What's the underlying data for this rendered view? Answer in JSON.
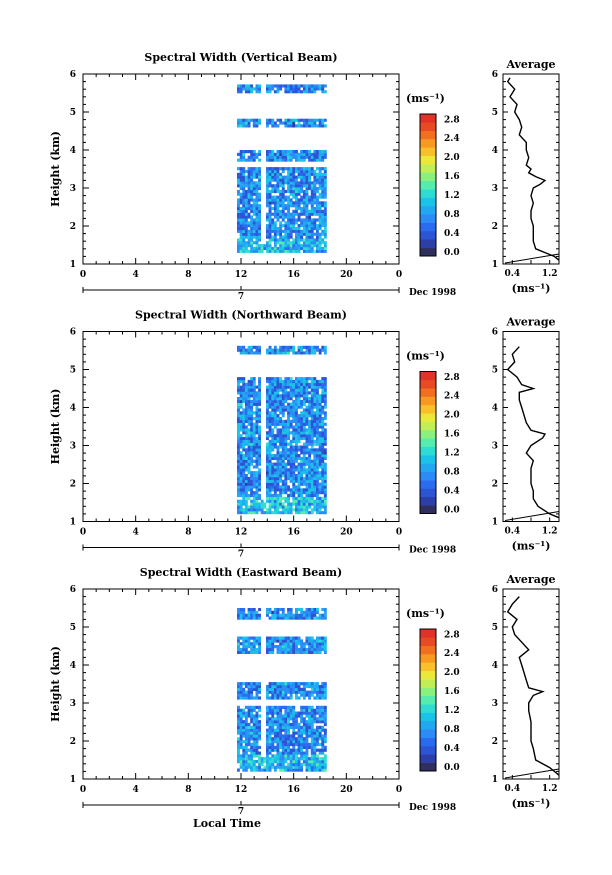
{
  "colors": {
    "background": "#ffffff",
    "axis": "#000000",
    "colorbar": [
      "#2f2f5f",
      "#2c3ea8",
      "#2c55d6",
      "#2a6cf0",
      "#2a8cf4",
      "#22a8f0",
      "#19c4e8",
      "#2fdcd2",
      "#55ecae",
      "#8af07e",
      "#c2ee55",
      "#ece83a",
      "#f8c02a",
      "#f89a22",
      "#f0701f",
      "#e84a23",
      "#e03228"
    ]
  },
  "common": {
    "x_ticks": [
      "0",
      "4",
      "8",
      "12",
      "16",
      "20",
      "0"
    ],
    "y_ticks": [
      "1",
      "2",
      "3",
      "4",
      "5",
      "6"
    ],
    "date_label": "7",
    "month_label": "Dec 1998",
    "colorbar_unit": "(ms⁻¹)",
    "colorbar_ticks": [
      "0.0",
      "0.4",
      "0.8",
      "1.2",
      "1.6",
      "2.0",
      "2.4",
      "2.8"
    ],
    "avg_title": "Average",
    "avg_x_ticks": [
      "0.4",
      "1.2"
    ],
    "avg_unit": "(ms⁻¹)",
    "x_axis_label": "Local Time",
    "ylabel": "Height (km)"
  },
  "panels": [
    {
      "title": "Spectral Width (Vertical Beam)"
    },
    {
      "title": "Spectral Width (Northward Beam)"
    },
    {
      "title": "Spectral Width (Eastward Beam)"
    }
  ],
  "chart_data": [
    {
      "type": "heatmap",
      "title": "Spectral Width (Vertical Beam)",
      "xlabel": "",
      "ylabel": "Height (km)",
      "xlim": [
        0,
        24
      ],
      "ylim": [
        1,
        6
      ],
      "colorbar_label": "(ms⁻¹)",
      "colorbar_range": [
        0.0,
        3.0
      ],
      "data_time_range": [
        11.7,
        18.3
      ],
      "data_height_ranges": [
        [
          1.3,
          3.5
        ],
        [
          3.7,
          4.0
        ],
        [
          4.6,
          4.8
        ],
        [
          5.5,
          5.7
        ]
      ],
      "typical_values": "0.4–1.4 m/s (blue to cyan)",
      "average_profile": {
        "title": "Average",
        "xlabel": "(ms⁻¹)",
        "xlim": [
          0.2,
          1.4
        ],
        "height": [
          1.1,
          1.2,
          1.3,
          1.4,
          1.6,
          1.8,
          2.0,
          2.2,
          2.4,
          2.6,
          2.8,
          3.0,
          3.1,
          3.2,
          3.3,
          3.4,
          3.5,
          3.6,
          3.8,
          4.0,
          4.2,
          4.4,
          4.6,
          4.8,
          5.0,
          5.2,
          5.4,
          5.6,
          5.8,
          5.9
        ],
        "value": [
          1.4,
          1.3,
          1.1,
          0.9,
          0.85,
          0.85,
          0.85,
          0.8,
          0.8,
          0.85,
          0.8,
          0.85,
          1.0,
          1.1,
          0.9,
          0.75,
          0.8,
          0.7,
          0.75,
          0.7,
          0.7,
          0.55,
          0.6,
          0.55,
          0.45,
          0.5,
          0.35,
          0.45,
          0.3,
          0.35
        ]
      }
    },
    {
      "type": "heatmap",
      "title": "Spectral Width (Northward Beam)",
      "xlabel": "",
      "ylabel": "Height (km)",
      "xlim": [
        0,
        24
      ],
      "ylim": [
        1,
        6
      ],
      "colorbar_label": "(ms⁻¹)",
      "colorbar_range": [
        0.0,
        3.0
      ],
      "data_time_range": [
        11.7,
        18.3
      ],
      "data_height_ranges": [
        [
          1.2,
          4.8
        ],
        [
          5.4,
          5.6
        ]
      ],
      "typical_values": "0.4–1.2 m/s (blue to cyan)",
      "average_profile": {
        "title": "Average",
        "xlabel": "(ms⁻¹)",
        "xlim": [
          0.2,
          1.4
        ],
        "height": [
          1.1,
          1.2,
          1.4,
          1.6,
          1.8,
          2.0,
          2.2,
          2.4,
          2.6,
          2.8,
          3.0,
          3.2,
          3.3,
          3.4,
          3.6,
          3.8,
          4.0,
          4.2,
          4.4,
          4.5,
          4.6,
          4.8,
          5.0,
          5.2,
          5.4,
          5.6
        ],
        "value": [
          1.4,
          1.2,
          0.95,
          0.85,
          0.85,
          0.8,
          0.8,
          0.8,
          0.85,
          0.7,
          0.8,
          1.05,
          1.1,
          0.8,
          0.7,
          0.65,
          0.6,
          0.55,
          0.55,
          0.85,
          0.6,
          0.5,
          0.3,
          0.45,
          0.4,
          0.55
        ]
      }
    },
    {
      "type": "heatmap",
      "title": "Spectral Width (Eastward Beam)",
      "xlabel": "Local Time",
      "ylabel": "Height (km)",
      "xlim": [
        0,
        24
      ],
      "ylim": [
        1,
        6
      ],
      "colorbar_label": "(ms⁻¹)",
      "colorbar_range": [
        0.0,
        3.0
      ],
      "data_time_range": [
        11.7,
        18.3
      ],
      "data_height_ranges": [
        [
          1.2,
          2.9
        ],
        [
          3.1,
          3.5
        ],
        [
          4.3,
          4.7
        ],
        [
          5.2,
          5.5
        ]
      ],
      "typical_values": "0.4–1.2 m/s (blue to cyan)",
      "average_profile": {
        "title": "Average",
        "xlabel": "(ms⁻¹)",
        "xlim": [
          0.2,
          1.4
        ],
        "height": [
          1.1,
          1.3,
          1.5,
          1.8,
          2.0,
          2.2,
          2.5,
          2.8,
          3.0,
          3.2,
          3.3,
          3.4,
          3.6,
          3.8,
          4.0,
          4.2,
          4.4,
          4.6,
          4.8,
          5.0,
          5.2,
          5.4,
          5.6,
          5.8
        ],
        "value": [
          1.4,
          1.2,
          0.9,
          0.85,
          0.8,
          0.8,
          0.8,
          0.75,
          0.75,
          0.85,
          1.05,
          0.75,
          0.7,
          0.65,
          0.6,
          0.55,
          0.75,
          0.6,
          0.45,
          0.4,
          0.5,
          0.3,
          0.4,
          0.55
        ]
      }
    }
  ]
}
